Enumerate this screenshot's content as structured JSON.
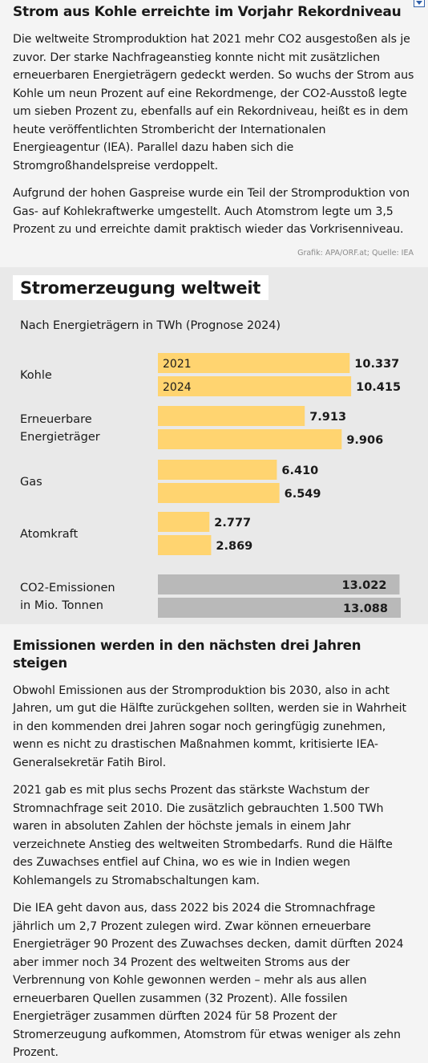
{
  "article": {
    "headline": "Strom aus Kohle erreichte im Vorjahr Rekordniveau",
    "paragraphs": [
      "Die weltweite Stromproduktion hat 2021 mehr CO2 ausgestoßen als je zuvor. Der starke Nachfrageanstieg konnte nicht mit zusätzlichen erneuerbaren Energieträgern gedeckt werden. So wuchs der Strom aus Kohle um neun Prozent auf eine Rekordmenge, der CO2-Ausstoß legte um sieben Prozent zu, ebenfalls auf ein Rekordniveau, heißt es in dem heute veröffentlichten Strombericht der Internationalen Energieagentur (IEA). Parallel dazu haben sich die Stromgroßhandelspreise verdoppelt.",
      "Aufgrund der hohen Gaspreise wurde ein Teil der Stromproduktion von Gas- auf Kohlekraftwerke umgestellt. Auch Atomstrom legte um 3,5 Prozent zu und erreichte damit praktisch wieder das Vorkrisenniveau."
    ],
    "credit": "Grafik: APA/ORF.at; Quelle: IEA"
  },
  "chart_data": {
    "type": "bar",
    "orientation": "horizontal",
    "title": "Stromerzeugung weltweit",
    "subtitle": "Nach Energieträgern in TWh (Prognose 2024)",
    "series_labels": [
      "2021",
      "2024"
    ],
    "categories": [
      {
        "label": [
          "Kohle"
        ],
        "values": [
          10337,
          10415
        ],
        "value_labels": [
          "10.337",
          "10.415"
        ],
        "color": "#ffd470"
      },
      {
        "label": [
          "Erneuerbare",
          "Energieträger"
        ],
        "values": [
          7913,
          9906
        ],
        "value_labels": [
          "7.913",
          "9.906"
        ],
        "color": "#ffd470"
      },
      {
        "label": [
          "Gas"
        ],
        "values": [
          6410,
          6549
        ],
        "value_labels": [
          "6.410",
          "6.549"
        ],
        "color": "#ffd470"
      },
      {
        "label": [
          "Atomkraft"
        ],
        "values": [
          2777,
          2869
        ],
        "value_labels": [
          "2.777",
          "2.869"
        ],
        "color": "#ffd470"
      },
      {
        "label": [
          "CO2-Emissionen",
          "in Mio. Tonnen"
        ],
        "values": [
          13022,
          13088
        ],
        "value_labels": [
          "13.022",
          "13.088"
        ],
        "color": "#b9b9b9",
        "value_inside": true
      }
    ],
    "max": 13088
  },
  "section2": {
    "headline": "Emissionen werden in den nächsten drei Jahren steigen",
    "paragraphs": [
      "Obwohl Emissionen aus der Stromproduktion bis 2030, also in acht Jahren, um gut die Hälfte zurückgehen sollten, werden sie in Wahrheit in den kommenden drei Jahren sogar noch geringfügig zunehmen, wenn es nicht zu drastischen Maßnahmen kommt, kritisierte IEA-Generalsekretär Fatih Birol.",
      "2021 gab es mit plus sechs Prozent das stärkste Wachstum der Stromnachfrage seit 2010. Die zusätzlich gebrauchten 1.500 TWh waren in absoluten Zahlen der höchste jemals in einem Jahr verzeichnete Anstieg des weltweiten Strombedarfs. Rund die Hälfte des Zuwachses entfiel auf China, wo es wie in Indien wegen Kohlemangels zu Stromabschaltungen kam.",
      "Die IEA geht davon aus, dass 2022 bis 2024 die Stromnachfrage jährlich um 2,7 Prozent zulegen wird. Zwar können erneuerbare Energieträger 90 Prozent des Zuwachses decken, damit dürften 2024 aber immer noch 34 Prozent des weltweiten Stroms aus der Verbrennung von Kohle gewonnen werden – mehr als aus allen erneuerbaren Quellen zusammen (32 Prozent). Alle fossilen Energieträger zusammen dürften 2024 für 58 Prozent der Stromerzeugung aufkommen, Atomstrom für etwas weniger als zehn Prozent."
    ]
  }
}
